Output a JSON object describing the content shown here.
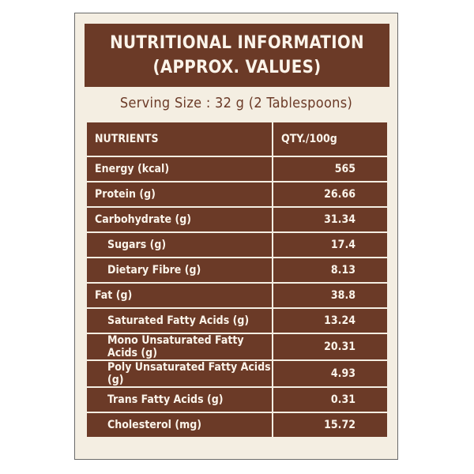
{
  "title_line1": "NUTRITIONAL INFORMATION",
  "title_line2": "(APPROX. VALUES)",
  "serving_size": "Serving Size : 32 g (2 Tablespoons)",
  "table": {
    "headers": [
      "NUTRIENTS",
      "QTY./100g"
    ],
    "rows": [
      {
        "name": "Energy (kcal)",
        "value": "565",
        "indent": false
      },
      {
        "name": "Protein (g)",
        "value": "26.66",
        "indent": false
      },
      {
        "name": "Carbohydrate (g)",
        "value": "31.34",
        "indent": false
      },
      {
        "name": "Sugars (g)",
        "value": "17.4",
        "indent": true
      },
      {
        "name": "Dietary Fibre (g)",
        "value": "8.13",
        "indent": true
      },
      {
        "name": "Fat (g)",
        "value": "38.8",
        "indent": false
      },
      {
        "name": "Saturated Fatty Acids (g)",
        "value": "13.24",
        "indent": true
      },
      {
        "name": "Mono Unsaturated Fatty Acids (g)",
        "value": "20.31",
        "indent": true
      },
      {
        "name": "Poly Unsaturated Fatty Acids (g)",
        "value": "4.93",
        "indent": true
      },
      {
        "name": "Trans Fatty Acids (g)",
        "value": "0.31",
        "indent": true
      },
      {
        "name": "Cholesterol (mg)",
        "value": "15.72",
        "indent": true
      }
    ]
  },
  "colors": {
    "brown": "#6b3a27",
    "cream": "#f4eee2"
  }
}
